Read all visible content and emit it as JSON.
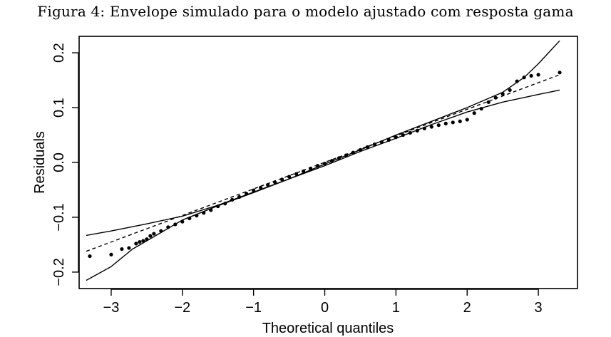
{
  "caption": "Figura 4: Envelope simulado para o modelo ajustado com resposta gama",
  "chart_data": {
    "type": "scatter",
    "title": "",
    "xlabel": "Theoretical quantiles",
    "ylabel": "Residuals",
    "xlim": [
      -3.45,
      3.55
    ],
    "ylim": [
      -0.23,
      0.23
    ],
    "x_ticks": [
      -3,
      -2,
      -1,
      0,
      1,
      2,
      3
    ],
    "x_tick_labels": [
      "−3",
      "−2",
      "−1",
      "0",
      "1",
      "2",
      "3"
    ],
    "y_ticks": [
      -0.2,
      -0.1,
      0.0,
      0.1,
      0.2
    ],
    "y_tick_labels": [
      "−0.2",
      "−0.1",
      "0.0",
      "0.1",
      "0.2"
    ],
    "grid": false,
    "series": [
      {
        "role": "envelope-upper",
        "style": "solid",
        "x": [
          -3.35,
          -3.0,
          -2.5,
          -2.0,
          -1.5,
          -1.0,
          -0.5,
          0.0,
          0.5,
          1.0,
          1.5,
          2.0,
          2.5,
          2.8,
          3.0,
          3.3
        ],
        "y": [
          -0.133,
          -0.125,
          -0.112,
          -0.098,
          -0.078,
          -0.054,
          -0.03,
          -0.003,
          0.023,
          0.05,
          0.075,
          0.1,
          0.128,
          0.155,
          0.18,
          0.222
        ]
      },
      {
        "role": "envelope-lower",
        "style": "solid",
        "x": [
          -3.35,
          -3.0,
          -2.7,
          -2.5,
          -2.0,
          -1.5,
          -1.0,
          -0.5,
          0.0,
          0.5,
          1.0,
          1.5,
          2.0,
          2.5,
          3.0,
          3.3
        ],
        "y": [
          -0.215,
          -0.19,
          -0.158,
          -0.143,
          -0.105,
          -0.079,
          -0.055,
          -0.03,
          -0.006,
          0.02,
          0.044,
          0.069,
          0.092,
          0.11,
          0.124,
          0.132
        ]
      },
      {
        "role": "reference-line",
        "style": "dashed",
        "x": [
          -3.35,
          3.3
        ],
        "y": [
          -0.162,
          0.16
        ]
      },
      {
        "role": "residuals",
        "style": "points",
        "x": [
          -3.3,
          -3.0,
          -2.85,
          -2.75,
          -2.65,
          -2.6,
          -2.55,
          -2.5,
          -2.45,
          -2.4,
          -2.3,
          -2.2,
          -2.1,
          -2.0,
          -1.9,
          -1.8,
          -1.7,
          -1.6,
          -1.5,
          -1.4,
          -1.3,
          -1.2,
          -1.1,
          -1.0,
          -0.9,
          -0.8,
          -0.7,
          -0.6,
          -0.5,
          -0.4,
          -0.3,
          -0.2,
          -0.1,
          0.0,
          0.1,
          0.2,
          0.3,
          0.4,
          0.5,
          0.6,
          0.7,
          0.8,
          0.9,
          1.0,
          1.1,
          1.2,
          1.3,
          1.4,
          1.5,
          1.6,
          1.7,
          1.8,
          1.9,
          2.0,
          2.1,
          2.2,
          2.3,
          2.4,
          2.5,
          2.6,
          2.7,
          2.8,
          2.9,
          3.0,
          3.3
        ],
        "y": [
          -0.171,
          -0.168,
          -0.158,
          -0.156,
          -0.148,
          -0.145,
          -0.143,
          -0.14,
          -0.134,
          -0.13,
          -0.125,
          -0.118,
          -0.113,
          -0.108,
          -0.102,
          -0.097,
          -0.092,
          -0.087,
          -0.08,
          -0.075,
          -0.068,
          -0.063,
          -0.057,
          -0.051,
          -0.046,
          -0.041,
          -0.036,
          -0.031,
          -0.026,
          -0.021,
          -0.016,
          -0.011,
          -0.006,
          -0.002,
          0.003,
          0.008,
          0.013,
          0.018,
          0.023,
          0.028,
          0.033,
          0.037,
          0.041,
          0.046,
          0.05,
          0.054,
          0.058,
          0.062,
          0.065,
          0.068,
          0.071,
          0.073,
          0.075,
          0.078,
          0.09,
          0.098,
          0.11,
          0.118,
          0.125,
          0.132,
          0.148,
          0.155,
          0.158,
          0.16,
          0.164
        ]
      }
    ]
  }
}
